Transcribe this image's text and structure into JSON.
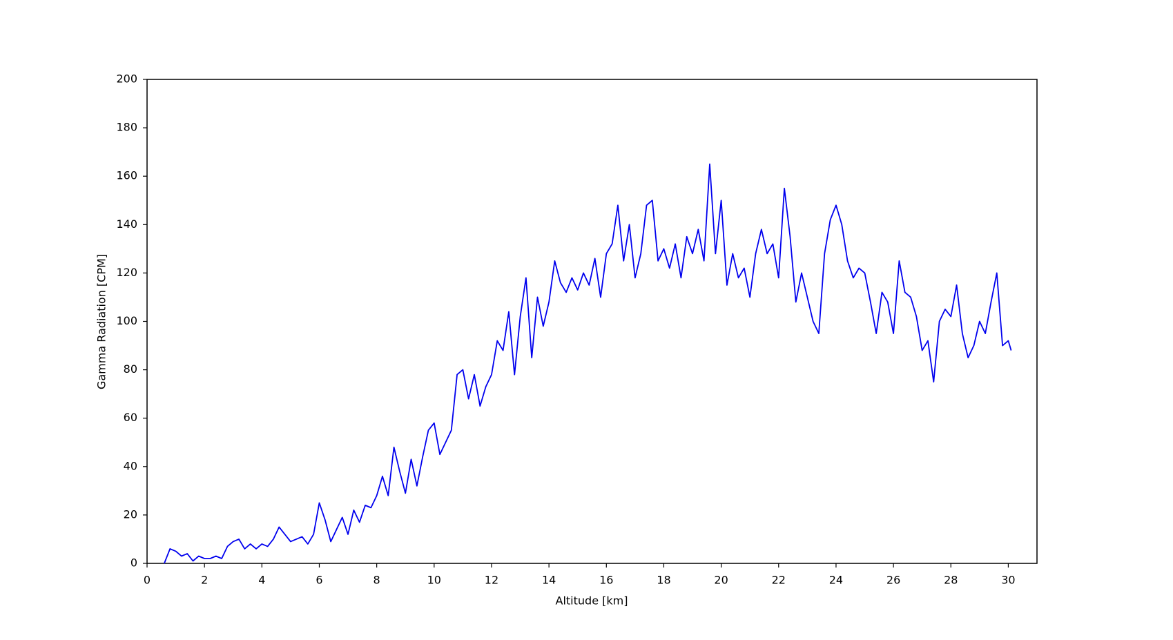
{
  "chart_data": {
    "type": "line",
    "xlabel": "Altitude [km]",
    "ylabel": "Gamma Radiation [CPM]",
    "x": [
      0.6,
      0.8,
      1.0,
      1.2,
      1.4,
      1.6,
      1.8,
      2.0,
      2.2,
      2.4,
      2.6,
      2.8,
      3.0,
      3.2,
      3.4,
      3.6,
      3.8,
      4.0,
      4.2,
      4.4,
      4.6,
      4.8,
      5.0,
      5.2,
      5.4,
      5.6,
      5.8,
      6.0,
      6.2,
      6.4,
      6.6,
      6.8,
      7.0,
      7.2,
      7.4,
      7.6,
      7.8,
      8.0,
      8.2,
      8.4,
      8.6,
      8.8,
      9.0,
      9.2,
      9.4,
      9.6,
      9.8,
      10.0,
      10.2,
      10.4,
      10.6,
      10.8,
      11.0,
      11.2,
      11.4,
      11.6,
      11.8,
      12.0,
      12.2,
      12.4,
      12.6,
      12.8,
      13.0,
      13.2,
      13.4,
      13.6,
      13.8,
      14.0,
      14.2,
      14.4,
      14.6,
      14.8,
      15.0,
      15.2,
      15.4,
      15.6,
      15.8,
      16.0,
      16.2,
      16.4,
      16.6,
      16.8,
      17.0,
      17.2,
      17.4,
      17.6,
      17.8,
      18.0,
      18.2,
      18.4,
      18.6,
      18.8,
      19.0,
      19.2,
      19.4,
      19.6,
      19.8,
      20.0,
      20.2,
      20.4,
      20.6,
      20.8,
      21.0,
      21.2,
      21.4,
      21.6,
      21.8,
      22.0,
      22.2,
      22.4,
      22.6,
      22.8,
      23.0,
      23.2,
      23.4,
      23.6,
      23.8,
      24.0,
      24.2,
      24.4,
      24.6,
      24.8,
      25.0,
      25.2,
      25.4,
      25.6,
      25.8,
      26.0,
      26.2,
      26.4,
      26.6,
      26.8,
      27.0,
      27.2,
      27.4,
      27.6,
      27.8,
      28.0,
      28.2,
      28.4,
      28.6,
      28.8,
      29.0,
      29.2,
      29.4,
      29.6,
      29.8,
      30.0,
      30.1
    ],
    "series": [
      {
        "color": "#0000ee",
        "values": [
          0,
          6,
          5,
          3,
          4,
          1,
          3,
          2,
          2,
          3,
          2,
          7,
          9,
          10,
          6,
          8,
          6,
          8,
          7,
          10,
          15,
          12,
          9,
          10,
          11,
          8,
          12,
          25,
          18,
          9,
          14,
          19,
          12,
          22,
          17,
          24,
          23,
          28,
          36,
          28,
          48,
          38,
          29,
          43,
          32,
          44,
          55,
          58,
          45,
          50,
          55,
          78,
          80,
          68,
          78,
          65,
          73,
          78,
          92,
          88,
          104,
          78,
          102,
          118,
          85,
          110,
          98,
          108,
          125,
          116,
          112,
          118,
          113,
          120,
          115,
          126,
          110,
          128,
          132,
          148,
          125,
          140,
          118,
          128,
          148,
          150,
          125,
          130,
          122,
          132,
          118,
          135,
          128,
          138,
          125,
          165,
          128,
          150,
          115,
          128,
          118,
          122,
          110,
          128,
          138,
          128,
          132,
          118,
          155,
          135,
          108,
          120,
          110,
          100,
          95,
          128,
          142,
          148,
          140,
          125,
          118,
          122,
          120,
          108,
          95,
          112,
          108,
          95,
          125,
          112,
          110,
          102,
          88,
          92,
          75,
          100,
          105,
          102,
          115,
          95,
          85,
          90,
          100,
          95,
          108,
          120,
          90,
          92,
          88
        ]
      }
    ],
    "xlim": [
      0,
      31
    ],
    "ylim": [
      0,
      200
    ],
    "xticks": [
      0,
      2,
      4,
      6,
      8,
      10,
      12,
      14,
      16,
      18,
      20,
      22,
      24,
      26,
      28,
      30
    ],
    "yticks": [
      0,
      20,
      40,
      60,
      80,
      100,
      120,
      140,
      160,
      180,
      200
    ]
  }
}
